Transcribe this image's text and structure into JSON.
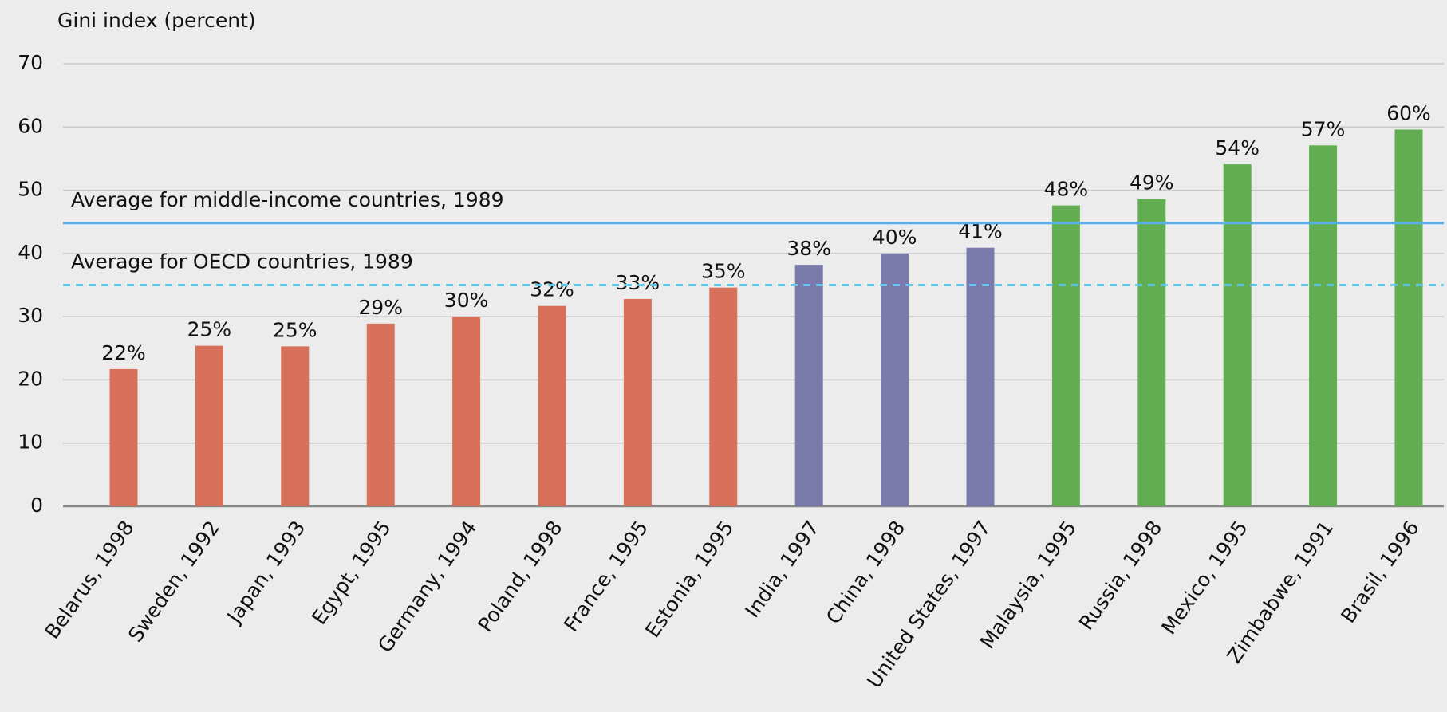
{
  "chart_data": {
    "type": "bar",
    "y_axis_label": "Gini index (percent)",
    "categories": [
      "Belarus, 1998",
      "Sweden, 1992",
      "Japan, 1993",
      "Egypt, 1995",
      "Germany, 1994",
      "Poland, 1998",
      "France, 1995",
      "Estonia, 1995",
      "India, 1997",
      "China, 1998",
      "United States, 1997",
      "Malaysia, 1995",
      "Russia, 1998",
      "Mexico, 1995",
      "Zimbabwe, 1991",
      "Brasil, 1996"
    ],
    "values": [
      21.7,
      25.4,
      25.3,
      28.9,
      30.0,
      31.7,
      32.8,
      34.6,
      38.2,
      40.0,
      40.9,
      47.6,
      48.6,
      54.1,
      57.1,
      59.6
    ],
    "value_labels": [
      "22%",
      "25%",
      "25%",
      "29%",
      "30%",
      "32%",
      "33%",
      "35%",
      "38%",
      "40%",
      "41%",
      "48%",
      "49%",
      "54%",
      "57%",
      "60%"
    ],
    "colors": [
      "#d9705a",
      "#d9705a",
      "#d9705a",
      "#d9705a",
      "#d9705a",
      "#d9705a",
      "#d9705a",
      "#d9705a",
      "#7a7bab",
      "#7a7bab",
      "#7a7bab",
      "#63ae52",
      "#63ae52",
      "#63ae52",
      "#63ae52",
      "#63ae52"
    ],
    "tick_label_colors": [
      "#111111",
      "#111111",
      "#777777",
      "#777777",
      "#111111",
      "#111111",
      "#111111",
      "#111111",
      "#777777",
      "#111111",
      "#111111",
      "#111111",
      "#111111",
      "#777777",
      "#111111",
      "#111111"
    ],
    "reference_lines": [
      {
        "label": "Average for middle-income countries, 1989",
        "value": 44.8,
        "style": "solid",
        "color": "#5aaee8"
      },
      {
        "label": "Average for OECD countries, 1989",
        "value": 35,
        "style": "dashed",
        "color": "#5ac8f0"
      }
    ],
    "ylim": [
      0,
      70
    ],
    "yticks": [
      0,
      10,
      20,
      30,
      40,
      50,
      60,
      70
    ],
    "grid": true
  }
}
